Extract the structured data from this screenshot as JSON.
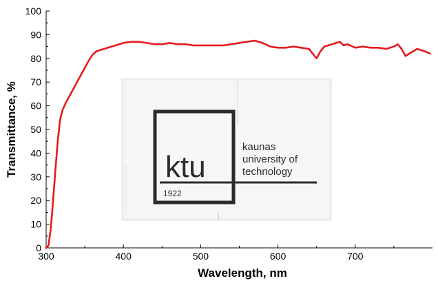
{
  "chart_data": {
    "type": "line",
    "title": "",
    "xlabel": "Wavelength, nm",
    "ylabel": "Transmittance, %",
    "xlim": [
      300,
      800
    ],
    "ylim": [
      0,
      100
    ],
    "xticks": [
      300,
      400,
      500,
      600,
      700
    ],
    "yticks": [
      0,
      10,
      20,
      30,
      40,
      50,
      60,
      70,
      80,
      90,
      100
    ],
    "grid": false,
    "series": [
      {
        "color": "#e8191c",
        "x": [
          300,
          303,
          306,
          309,
          312,
          315,
          318,
          321,
          325,
          330,
          335,
          340,
          345,
          350,
          355,
          360,
          365,
          370,
          375,
          380,
          390,
          400,
          410,
          420,
          430,
          440,
          450,
          460,
          470,
          480,
          490,
          500,
          510,
          520,
          530,
          540,
          550,
          560,
          570,
          580,
          590,
          600,
          610,
          620,
          630,
          640,
          645,
          650,
          655,
          660,
          670,
          680,
          685,
          690,
          700,
          710,
          720,
          730,
          740,
          750,
          755,
          760,
          765,
          770,
          780,
          790,
          797
        ],
        "y": [
          0,
          1,
          8,
          20,
          33,
          45,
          54,
          58,
          61,
          64,
          67,
          70,
          73,
          76,
          79,
          81.5,
          83,
          83.5,
          84,
          84.5,
          85.5,
          86.5,
          87,
          87,
          86.5,
          86,
          86,
          86.5,
          86,
          86,
          85.5,
          85.5,
          85.5,
          85.5,
          85.5,
          86,
          86.5,
          87,
          87.5,
          86.5,
          85,
          84.5,
          84.5,
          85,
          84.5,
          84,
          82,
          80,
          83,
          85,
          86,
          87,
          85.5,
          86,
          84.5,
          85,
          84.5,
          84.5,
          84,
          85,
          86,
          84,
          81,
          82,
          84,
          83,
          82
        ]
      }
    ],
    "inset_image": {
      "description_free": true,
      "logo_text": [
        "kaunas",
        "university of",
        "technology"
      ],
      "logo_mark": "ktu",
      "logo_year": "1922"
    }
  }
}
